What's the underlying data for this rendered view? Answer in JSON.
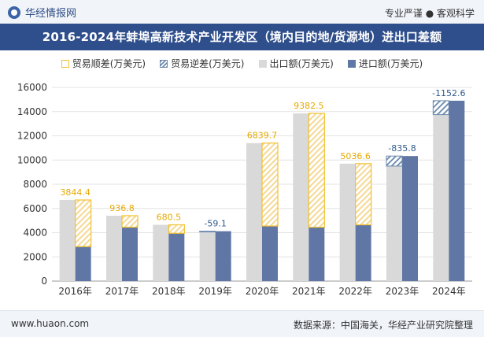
{
  "header": {
    "brand": "华经情报网",
    "tagline": "专业严谨 ● 客观科学"
  },
  "title": "2016-2024年蚌埠高新技术产业开发区（境内目的地/货源地）进出口差额",
  "legend": {
    "surplus": "贸易顺差(万美元)",
    "deficit": "贸易逆差(万美元)",
    "export": "出口额(万美元)",
    "import": "进口额(万美元)"
  },
  "footer": {
    "site": "www.huaon.com",
    "source": "数据来源：中国海关，华经产业研究院整理"
  },
  "colors": {
    "export": "#d9d9d9",
    "import": "#6077a5",
    "surplus": "#f2c12e",
    "deficit": "#6a88ad",
    "surplus_label": "#e6a800",
    "deficit_label": "#2f5a8c",
    "title_bg": "#2f4f8c"
  },
  "chart_data": {
    "type": "bar",
    "categories": [
      "2016年",
      "2017年",
      "2018年",
      "2019年",
      "2020年",
      "2021年",
      "2022年",
      "2023年",
      "2024年"
    ],
    "series": [
      {
        "name": "出口额(万美元)",
        "values": [
          6700,
          5400,
          4650,
          4060,
          11400,
          13850,
          9700,
          9500,
          13750
        ]
      },
      {
        "name": "进口额(万美元)",
        "values": [
          2850,
          4450,
          3950,
          4120,
          4550,
          4450,
          4650,
          10330,
          14900
        ]
      }
    ],
    "balance": {
      "values": [
        3844.4,
        936.8,
        680.5,
        -59.1,
        6839.7,
        9382.5,
        5036.6,
        -835.8,
        -1152.6
      ],
      "labels": [
        "3844.4",
        "936.8",
        "680.5",
        "-59.1",
        "6839.7",
        "9382.5",
        "5036.6",
        "-835.8",
        "-1152.6"
      ]
    },
    "yticks": [
      "0",
      "2000",
      "4000",
      "6000",
      "8000",
      "10000",
      "12000",
      "14000",
      "16000"
    ],
    "ylim": [
      0,
      16000
    ],
    "grid": true,
    "legend_position": "top"
  }
}
